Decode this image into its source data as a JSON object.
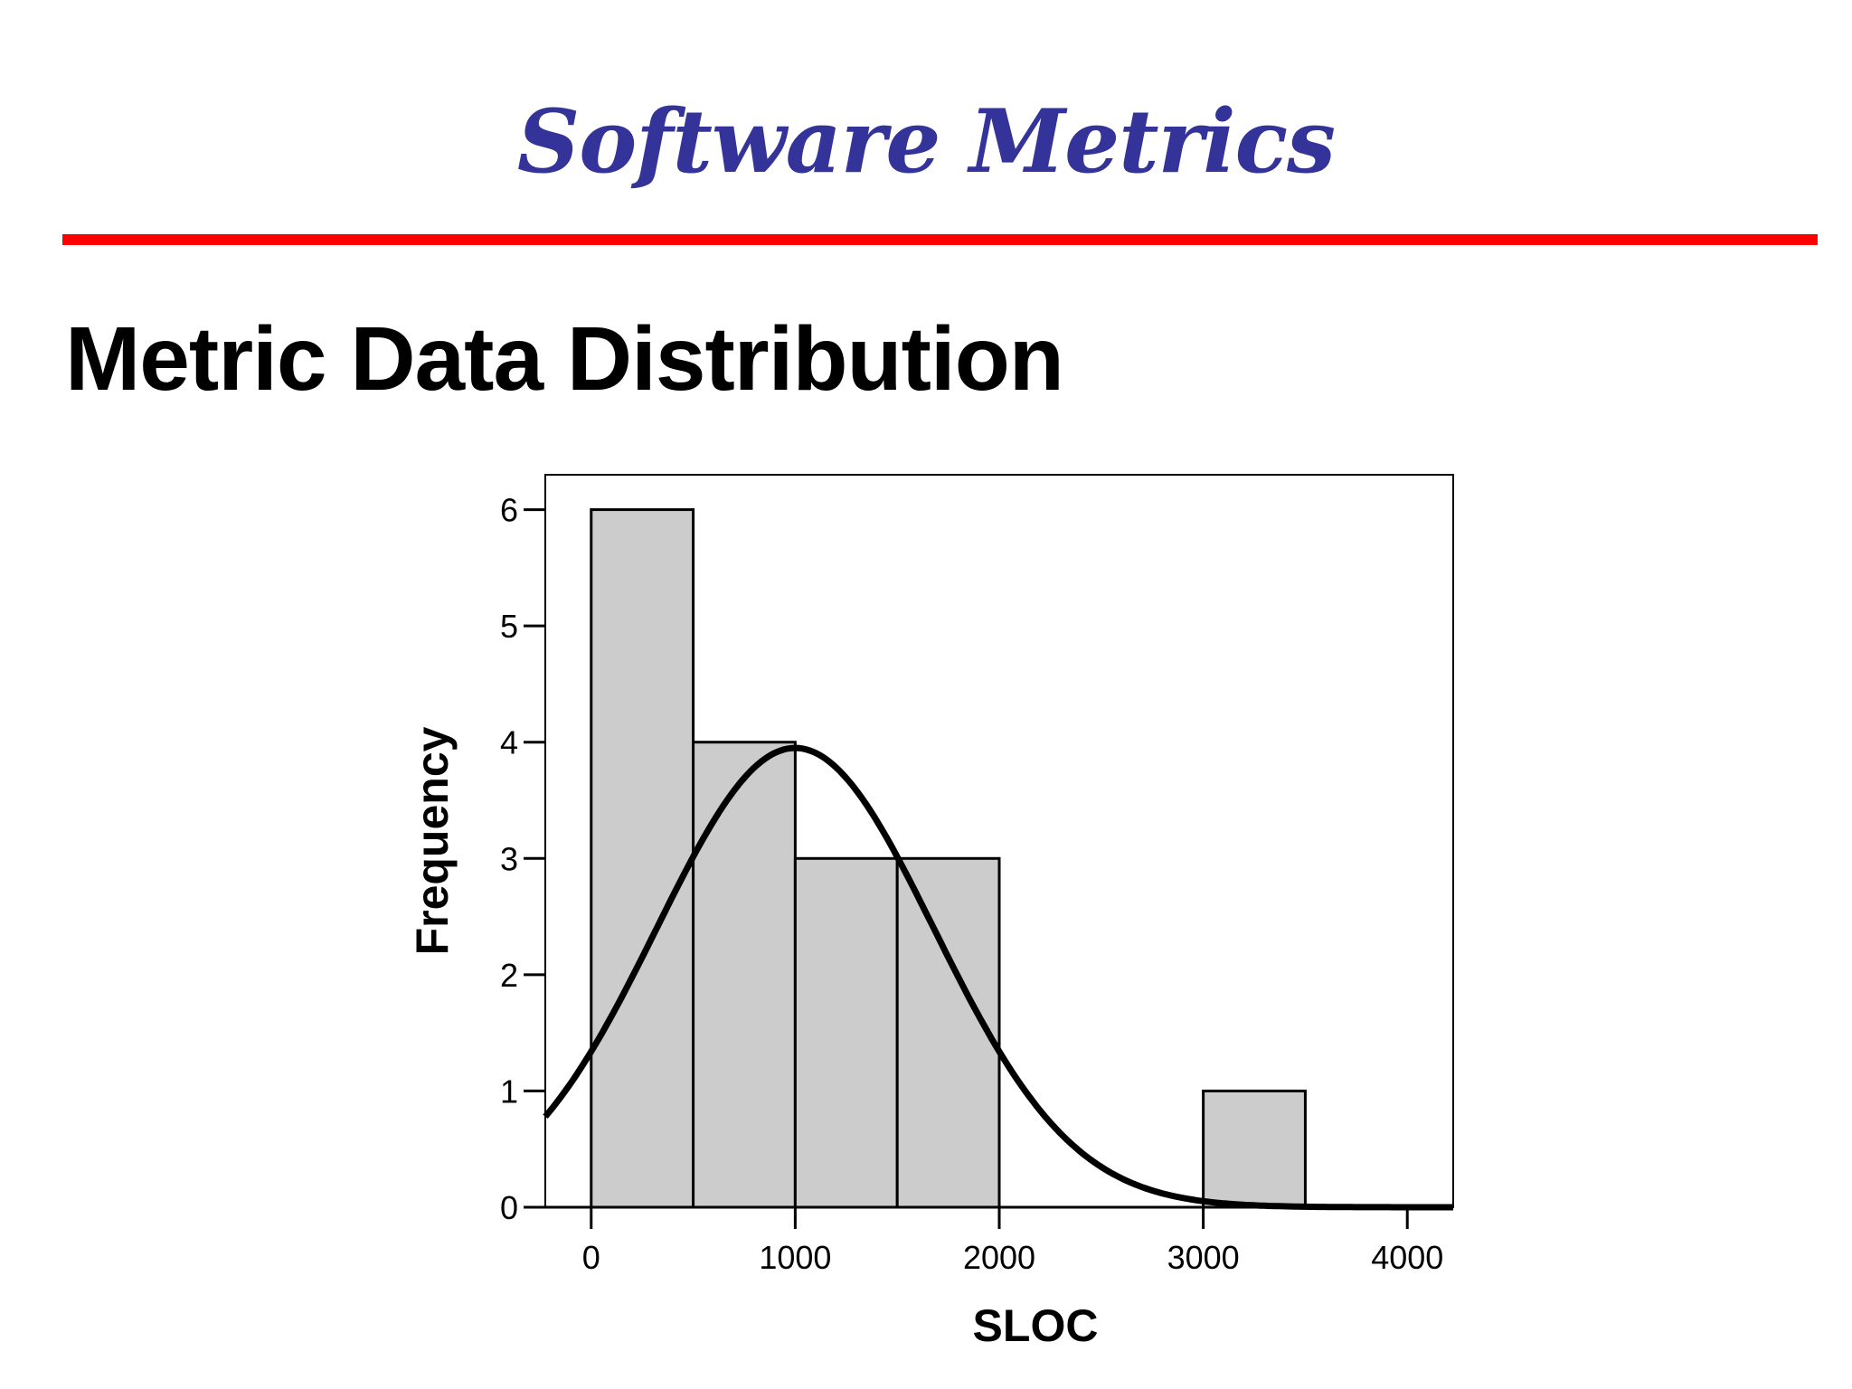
{
  "header": {
    "title": "Software Metrics",
    "rule_color": "#ff0000",
    "title_color": "#333399"
  },
  "slide": {
    "title": "Metric Data Distribution"
  },
  "chart_data": {
    "type": "bar",
    "subtype": "histogram",
    "title": "",
    "xlabel": "SLOC",
    "ylabel": "Frequency",
    "xlim": [
      -225,
      4225
    ],
    "ylim": [
      0,
      6.3
    ],
    "xticks": [
      0,
      1000,
      2000,
      3000,
      4000
    ],
    "yticks": [
      0,
      1,
      2,
      3,
      4,
      5,
      6
    ],
    "bins": [
      {
        "start": 0,
        "end": 500,
        "count": 6
      },
      {
        "start": 500,
        "end": 1000,
        "count": 4
      },
      {
        "start": 1000,
        "end": 1500,
        "count": 3
      },
      {
        "start": 1500,
        "end": 2000,
        "count": 3
      },
      {
        "start": 2000,
        "end": 2500,
        "count": 0
      },
      {
        "start": 2500,
        "end": 3000,
        "count": 0
      },
      {
        "start": 3000,
        "end": 3500,
        "count": 1
      }
    ],
    "normal_curve": {
      "peak": 3.95,
      "mean": 1000,
      "sd": 680
    },
    "bar_color": "#cccccc",
    "grid": false,
    "legend": "none"
  }
}
